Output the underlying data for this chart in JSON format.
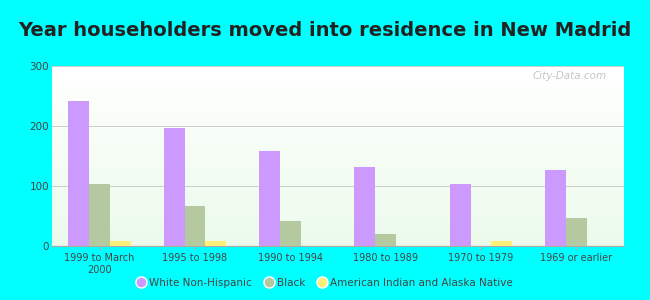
{
  "title": "Year householders moved into residence in New Madrid",
  "categories": [
    "1999 to March\n2000",
    "1995 to 1998",
    "1990 to 1994",
    "1980 to 1989",
    "1970 to 1979",
    "1969 or earlier"
  ],
  "white_non_hispanic": [
    242,
    196,
    158,
    132,
    103,
    127
  ],
  "black": [
    103,
    67,
    42,
    20,
    0,
    47
  ],
  "american_indian": [
    8,
    9,
    0,
    0,
    8,
    0
  ],
  "white_color": "#cc99ff",
  "black_color": "#b5c9a0",
  "american_indian_color": "#ffee77",
  "background_color": "#00ffff",
  "ylim": [
    0,
    300
  ],
  "yticks": [
    0,
    100,
    200,
    300
  ],
  "bar_width": 0.22,
  "title_fontsize": 14,
  "watermark": "City-Data.com"
}
